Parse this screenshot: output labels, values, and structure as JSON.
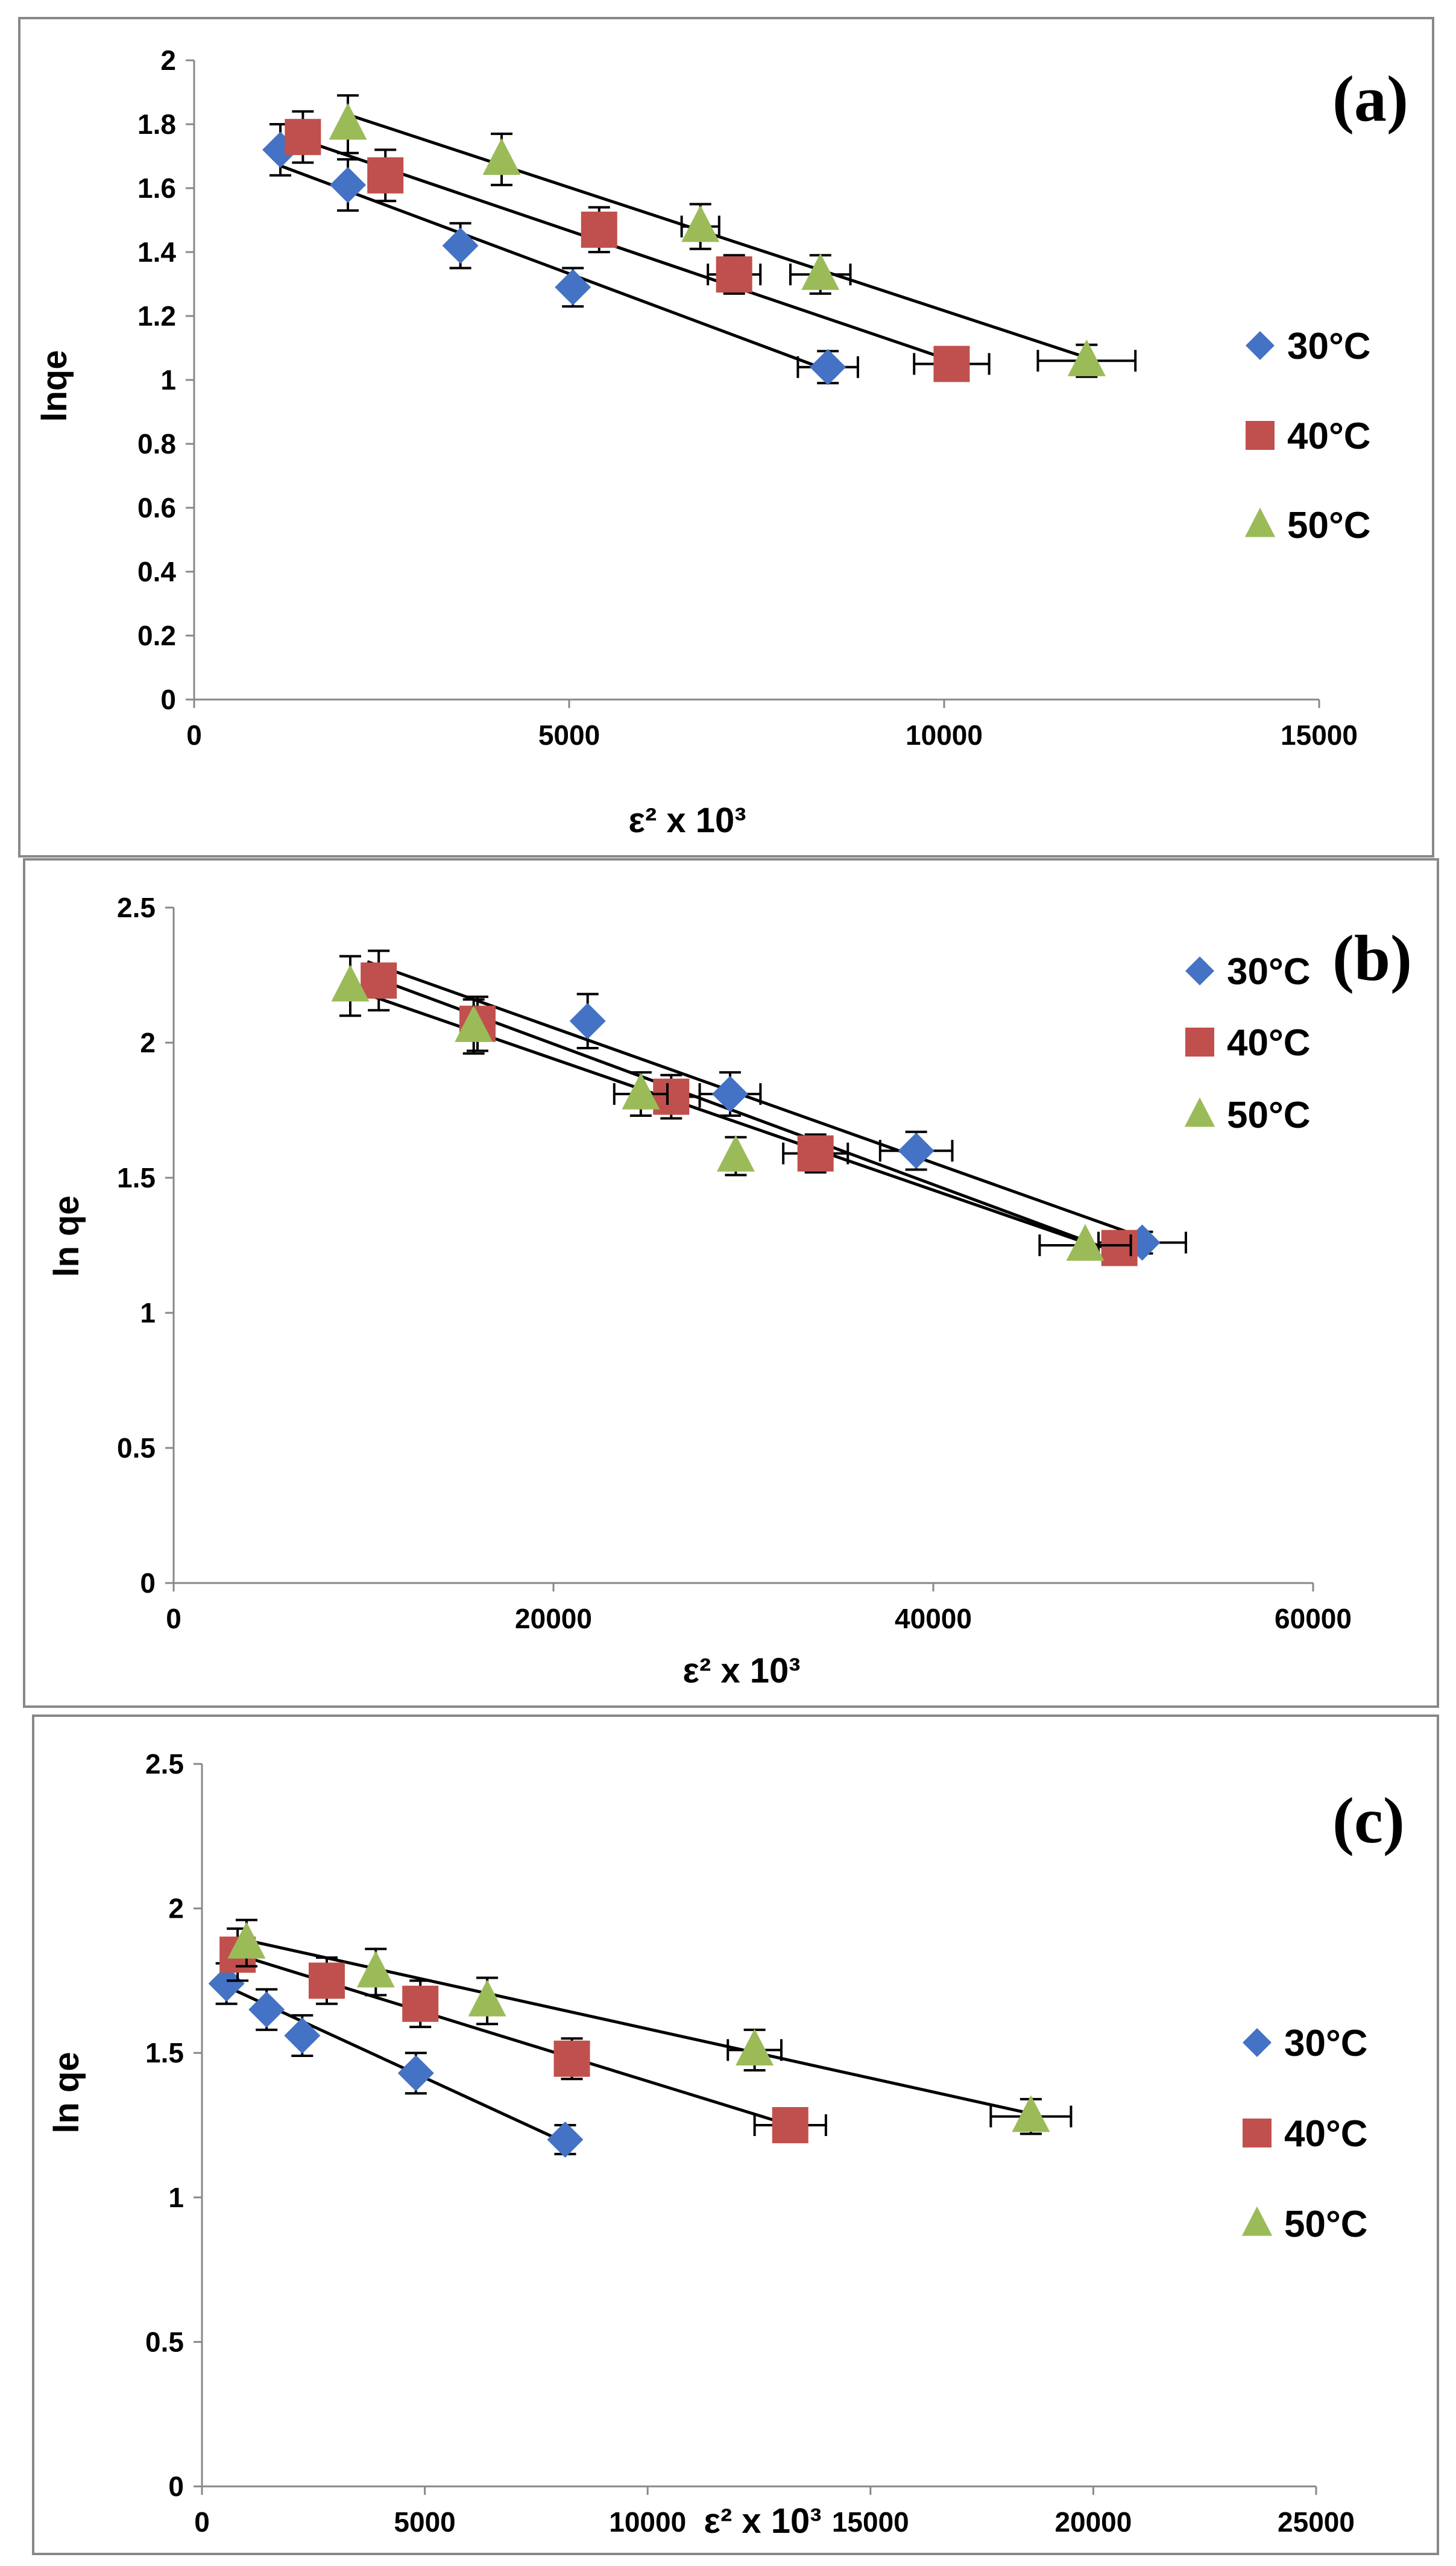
{
  "figure_colors": {
    "30°C": "#4472C4",
    "40°C": "#C0504D",
    "50°C": "#9BBB59"
  },
  "chart_data": [
    {
      "panel": "(a)",
      "type": "scatter",
      "xlabel": "ε² x 10³",
      "ylabel": "lnqe",
      "xlim": [
        0,
        15000
      ],
      "ylim": [
        0,
        2
      ],
      "xticks": [
        0,
        5000,
        10000,
        15000
      ],
      "yticks": [
        0,
        0.2,
        0.4,
        0.6,
        0.8,
        1,
        1.2,
        1.4,
        1.6,
        1.8,
        2
      ],
      "legend_position": "right",
      "series": [
        {
          "name": "30°C",
          "marker": "diamond",
          "x": [
            1150,
            2050,
            3550,
            5050,
            8450
          ],
          "y": [
            1.72,
            1.61,
            1.42,
            1.29,
            1.04
          ],
          "x_err": [
            0,
            0,
            0,
            0,
            400
          ],
          "y_err": [
            0.08,
            0.08,
            0.07,
            0.06,
            0.05
          ],
          "fit": [
            [
              1150,
              1.67
            ],
            [
              8450,
              1.03
            ]
          ]
        },
        {
          "name": "40°C",
          "marker": "square",
          "x": [
            1450,
            2550,
            5400,
            7200,
            10100
          ],
          "y": [
            1.76,
            1.64,
            1.47,
            1.33,
            1.05
          ],
          "x_err": [
            0,
            0,
            0,
            350,
            500
          ],
          "y_err": [
            0.08,
            0.08,
            0.07,
            0.06,
            0
          ],
          "fit": [
            [
              1450,
              1.75
            ],
            [
              10100,
              1.06
            ]
          ]
        },
        {
          "name": "50°C",
          "marker": "triangle",
          "x": [
            2050,
            4100,
            6750,
            8350,
            11900
          ],
          "y": [
            1.8,
            1.69,
            1.48,
            1.33,
            1.06
          ],
          "x_err": [
            0,
            0,
            250,
            400,
            650
          ],
          "y_err": [
            0.09,
            0.08,
            0.07,
            0.06,
            0.05
          ],
          "fit": [
            [
              2050,
              1.83
            ],
            [
              11900,
              1.07
            ]
          ]
        }
      ]
    },
    {
      "panel": "(b)",
      "type": "scatter",
      "xlabel": "ε² x 10³",
      "ylabel": "ln qe",
      "xlim": [
        0,
        60000
      ],
      "ylim": [
        0,
        2.5
      ],
      "xticks": [
        0,
        20000,
        40000,
        60000
      ],
      "yticks": [
        0,
        0.5,
        1,
        1.5,
        2,
        2.5
      ],
      "legend_position": "top-right",
      "series": [
        {
          "name": "30°C",
          "marker": "diamond",
          "x": [
            21800,
            29300,
            39100,
            51000
          ],
          "y": [
            2.08,
            1.81,
            1.6,
            1.26
          ],
          "x_err": [
            0,
            1600,
            1900,
            2300
          ],
          "y_err": [
            0.1,
            0.08,
            0.07,
            0.04
          ],
          "fit": [
            [
              10200,
              2.3
            ],
            [
              51000,
              1.28
            ]
          ]
        },
        {
          "name": "40°C",
          "marker": "square",
          "x": [
            10800,
            16000,
            26200,
            33800,
            49800
          ],
          "y": [
            2.23,
            2.07,
            1.8,
            1.59,
            1.24
          ],
          "x_err": [
            0,
            0,
            1500,
            1700,
            0
          ],
          "y_err": [
            0.11,
            0.1,
            0.08,
            0.07,
            0
          ],
          "fit": [
            [
              10200,
              2.25
            ],
            [
              49800,
              1.22
            ]
          ]
        },
        {
          "name": "50°C",
          "marker": "triangle",
          "x": [
            9300,
            15800,
            24600,
            29600,
            48000
          ],
          "y": [
            2.21,
            2.06,
            1.81,
            1.58,
            1.25
          ],
          "x_err": [
            0,
            0,
            1400,
            0,
            2400
          ],
          "y_err": [
            0.11,
            0.1,
            0.08,
            0.07,
            0
          ],
          "fit": [
            [
              9300,
              2.2
            ],
            [
              48000,
              1.26
            ]
          ]
        }
      ]
    },
    {
      "panel": "(c)",
      "type": "scatter",
      "xlabel": "ε² x 10³",
      "ylabel": "ln qe",
      "xlim": [
        0,
        25000
      ],
      "ylim": [
        0,
        2.5
      ],
      "xticks": [
        0,
        5000,
        10000,
        15000,
        20000,
        25000
      ],
      "yticks": [
        0,
        0.5,
        1,
        1.5,
        2,
        2.5
      ],
      "legend_position": "right",
      "series": [
        {
          "name": "30°C",
          "marker": "diamond",
          "x": [
            550,
            1450,
            2250,
            4800,
            8150
          ],
          "y": [
            1.74,
            1.65,
            1.56,
            1.43,
            1.2
          ],
          "x_err": [
            0,
            0,
            0,
            0,
            0
          ],
          "y_err": [
            0.07,
            0.07,
            0.07,
            0.07,
            0.05
          ],
          "fit": [
            [
              550,
              1.73
            ],
            [
              8150,
              1.19
            ]
          ]
        },
        {
          "name": "40°C",
          "marker": "square",
          "x": [
            800,
            2800,
            4900,
            8300,
            13200
          ],
          "y": [
            1.84,
            1.75,
            1.67,
            1.48,
            1.25
          ],
          "x_err": [
            0,
            0,
            0,
            0,
            800
          ],
          "y_err": [
            0.09,
            0.08,
            0.08,
            0.07,
            0
          ],
          "fit": [
            [
              800,
              1.84
            ],
            [
              13200,
              1.25
            ]
          ]
        },
        {
          "name": "50°C",
          "marker": "triangle",
          "x": [
            1000,
            3900,
            6400,
            12400,
            18600
          ],
          "y": [
            1.88,
            1.78,
            1.68,
            1.51,
            1.28
          ],
          "x_err": [
            0,
            0,
            0,
            600,
            900
          ],
          "y_err": [
            0.08,
            0.08,
            0.08,
            0.07,
            0.06
          ],
          "fit": [
            [
              1000,
              1.89
            ],
            [
              18600,
              1.29
            ]
          ]
        }
      ]
    }
  ]
}
